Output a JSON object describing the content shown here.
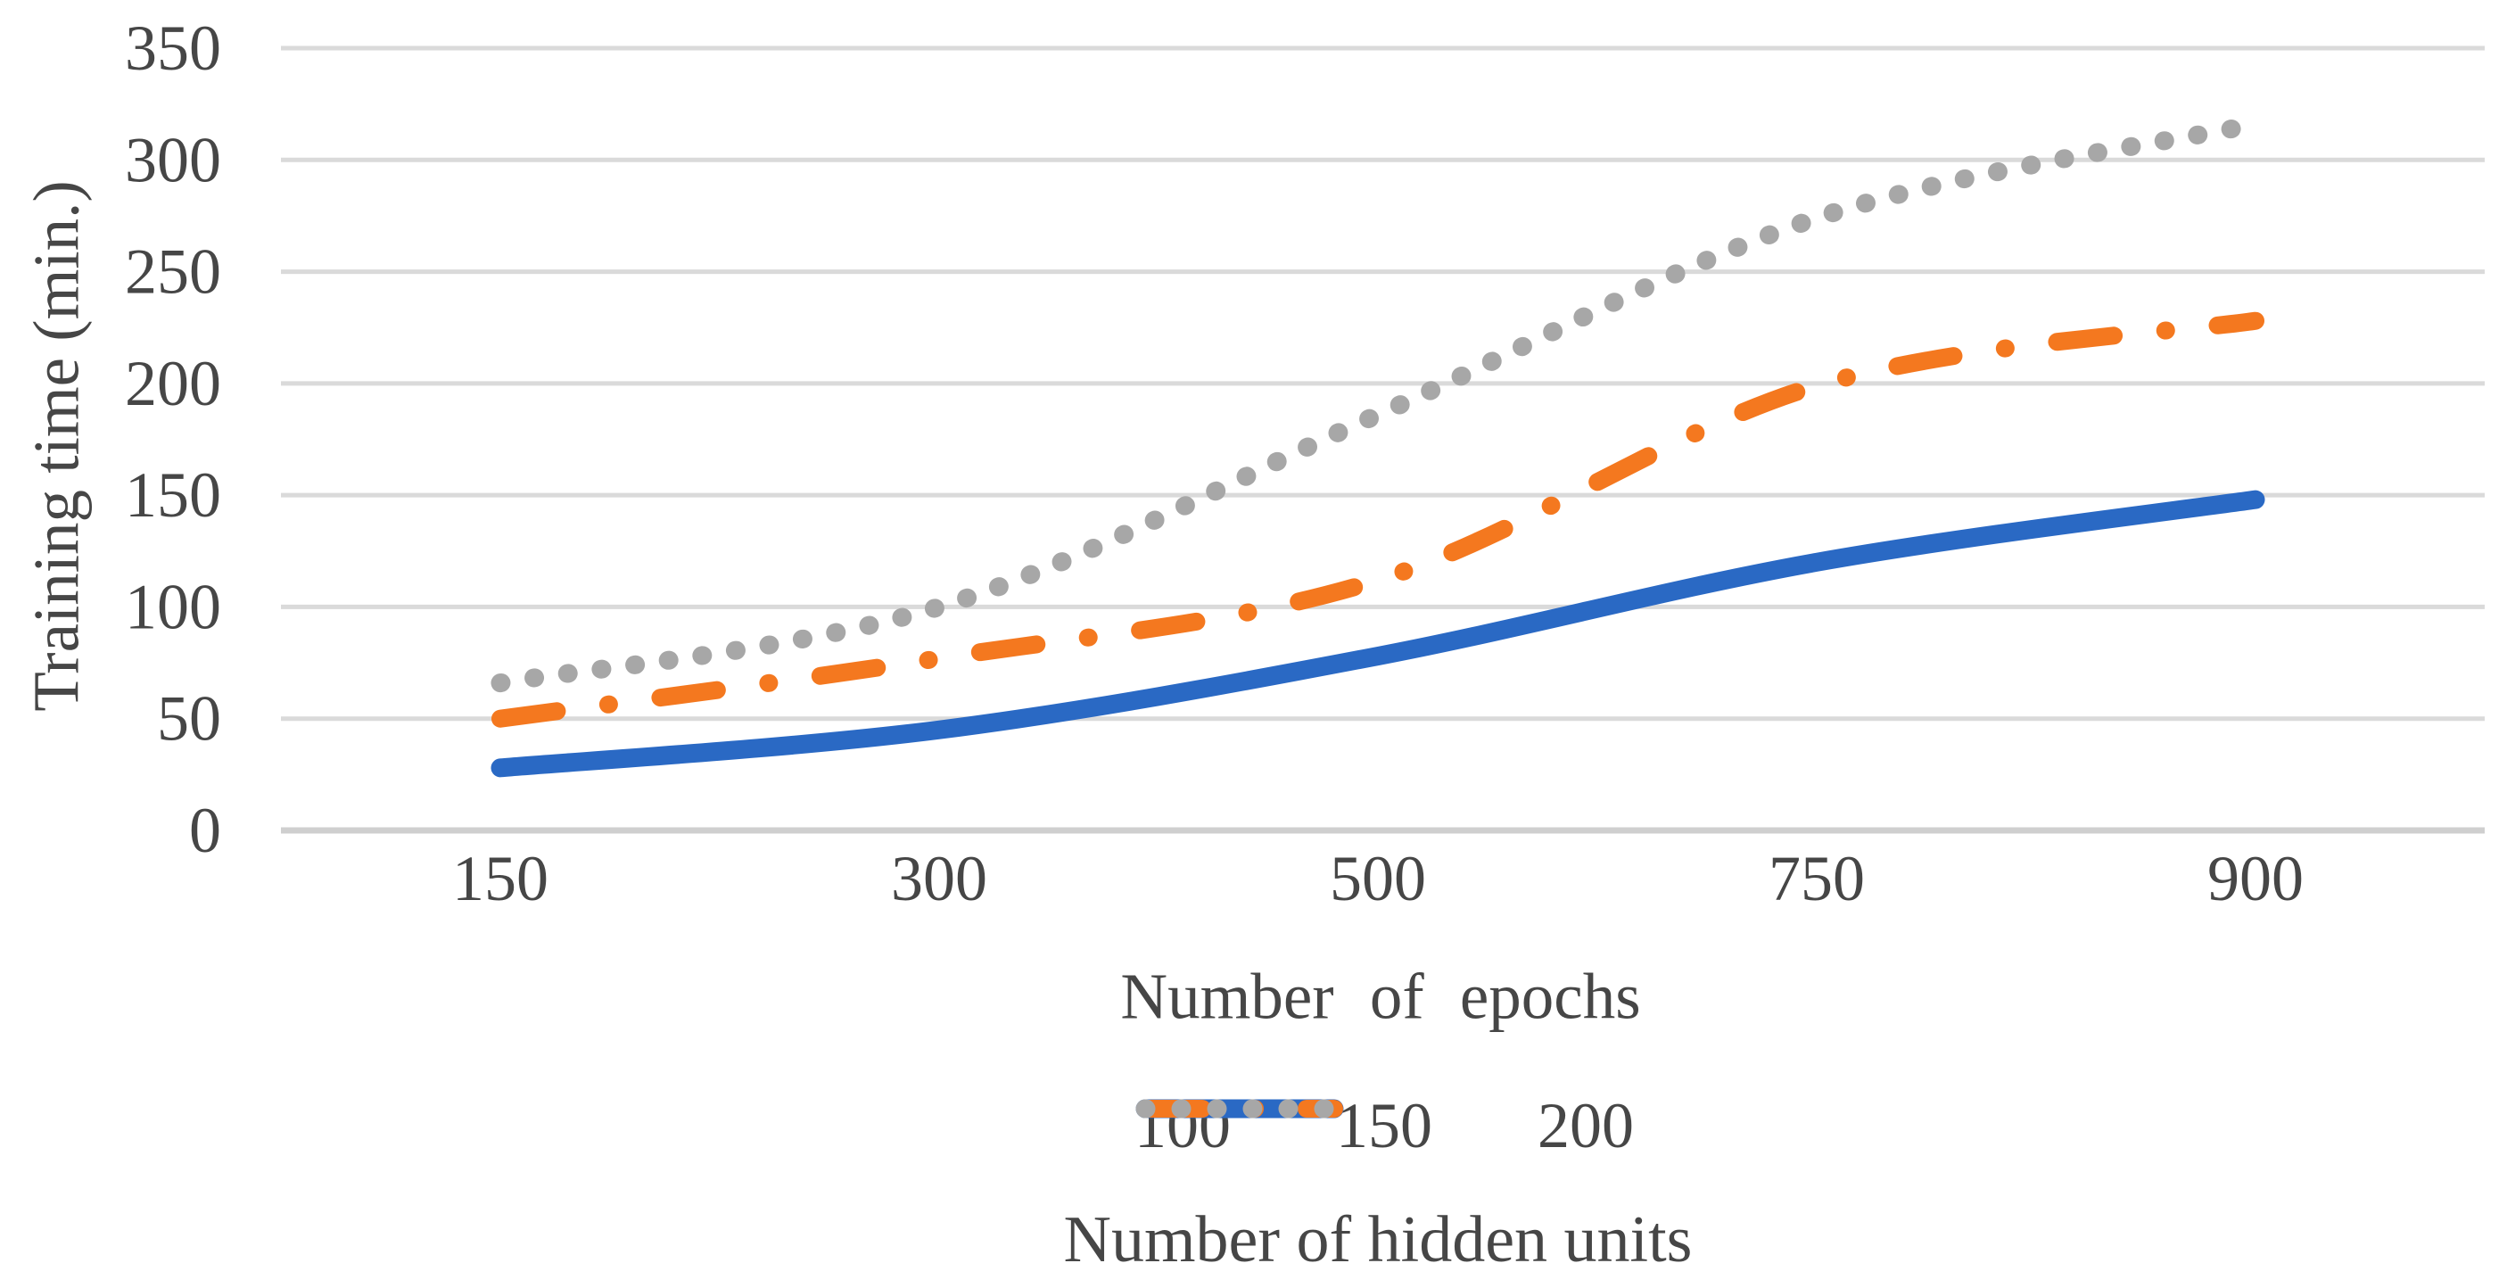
{
  "chart_data": {
    "type": "line",
    "title": "",
    "x_axis_type": "categorical",
    "categories": [
      150,
      300,
      500,
      750,
      900
    ],
    "xlabel": "Number of epochs",
    "ylabel": "Training time (min.)",
    "ylim": [
      0,
      350
    ],
    "yticks": [
      0,
      50,
      100,
      150,
      200,
      250,
      300,
      350
    ],
    "grid": "horizontal-only",
    "legend_position": "bottom",
    "legend_title": "Number of hidden units",
    "series": [
      {
        "name": "100",
        "line_style": "solid",
        "color": "#2A69C4",
        "values": [
          28,
          45,
          78,
          120,
          148
        ]
      },
      {
        "name": "150",
        "line_style": "dash-dot",
        "color": "#F4781F",
        "values": [
          50,
          77,
          112,
          199,
          228
        ]
      },
      {
        "name": "200",
        "line_style": "dotted",
        "color": "#A7A7A7",
        "values": [
          66,
          100,
          186,
          274,
          316
        ]
      }
    ],
    "colors": {
      "gridline": "#DADADA",
      "axis_line": "#CFCFCF",
      "text": "#464646",
      "background": "#FFFFFF"
    }
  }
}
